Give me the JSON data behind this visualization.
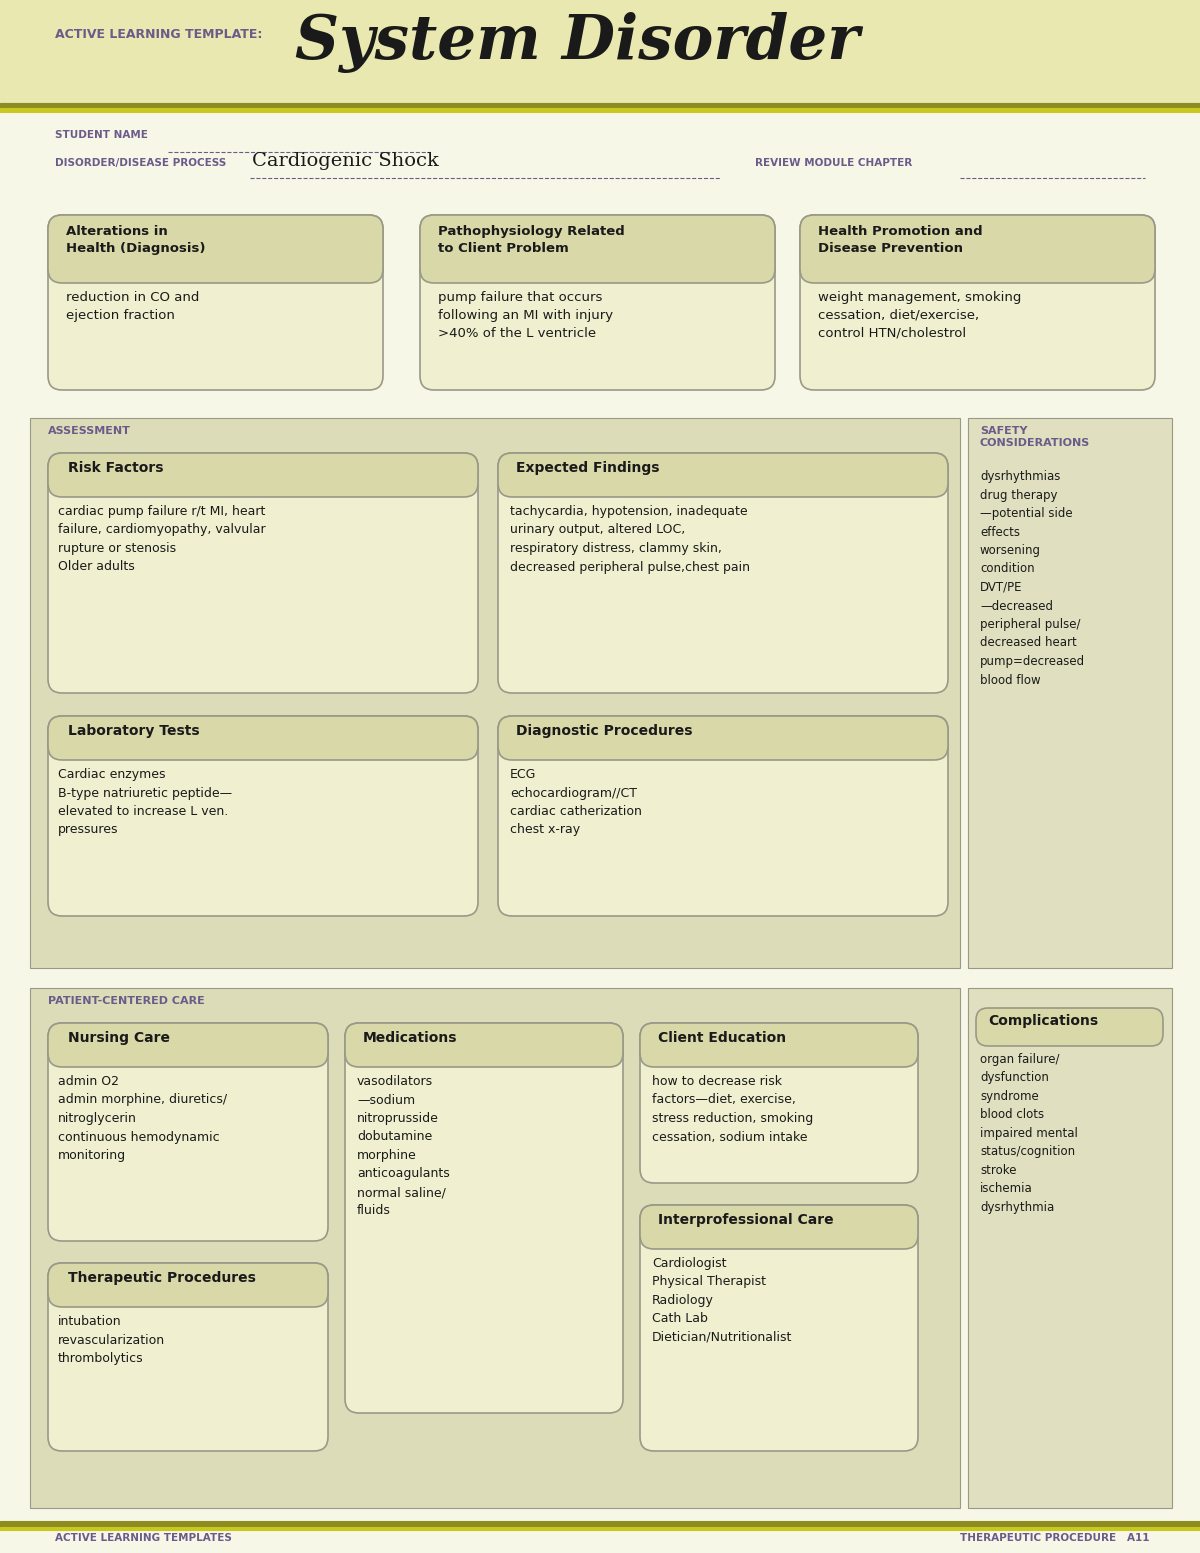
{
  "page_bg": "#f7f7e8",
  "header_bg": "#e8e8b0",
  "olive_dark": "#7a7a00",
  "olive_light": "#b8b800",
  "box_bg": "#f0f0d0",
  "box_title_bg": "#d8d8a8",
  "section_bg": "#dcdcb8",
  "safety_bg": "#e0e0c0",
  "purple": "#6b5b8a",
  "dark": "#1a1a1a",
  "border_color": "#999988",
  "title_label": "ACTIVE LEARNING TEMPLATE:",
  "title_main": "System Disorder",
  "student_name_label": "STUDENT NAME",
  "disorder_label": "DISORDER/DISEASE PROCESS",
  "disorder_value": "Cardiogenic Shock",
  "review_label": "REVIEW MODULE CHAPTER",
  "box1_title": "Alterations in\nHealth (Diagnosis)",
  "box1_content": "reduction in CO and\nejection fraction",
  "box2_title": "Pathophysiology Related\nto Client Problem",
  "box2_content": "pump failure that occurs\nfollowing an MI with injury\n>40% of the L ventricle",
  "box3_title": "Health Promotion and\nDisease Prevention",
  "box3_content": "weight management, smoking\ncessation, diet/exercise,\ncontrol HTN/cholestrol",
  "assess_label": "ASSESSMENT",
  "safety_label": "SAFETY\nCONSIDERATIONS",
  "safety_content": "dysrhythmias\ndrug therapy\n—potential side\neffects\nworsening\ncondition\nDVT/PE\n—decreased\nperipheral pulse/\ndecreased heart\npump=decreased\nblood flow",
  "risk_title": "Risk Factors",
  "risk_content": "cardiac pump failure r/t MI, heart\nfailure, cardiomyopathy, valvular\nrupture or stenosis\nOlder adults",
  "findings_title": "Expected Findings",
  "findings_content": "tachycardia, hypotension, inadequate\nurinary output, altered LOC,\nrespiratory distress, clammy skin,\ndecreased peripheral pulse,chest pain",
  "lab_title": "Laboratory Tests",
  "lab_content": "Cardiac enzymes\nB-type natriuretic peptide—\nelevated to increase L ven.\npressures",
  "diag_title": "Diagnostic Procedures",
  "diag_content": "ECG\nechocardiogram//CT\ncardiac catherization\nchest x-ray",
  "patcare_label": "PATIENT-CENTERED CARE",
  "complications_title": "Complications",
  "complications_content": "organ failure/\ndysfunction\nsyndrome\nblood clots\nimpaired mental\nstatus/cognition\nstroke\nischemia\ndysrhythmia",
  "nursing_title": "Nursing Care",
  "nursing_content": "admin O2\nadmin morphine, diuretics/\nnitroglycerin\ncontinuous hemodynamic\nmonitoring",
  "meds_title": "Medications",
  "meds_content": "vasodilators\n—sodium\nnitroprusside\ndobutamine\nmorphine\nanticoagulants\nnormal saline/\nfluids",
  "edu_title": "Client Education",
  "edu_content": "how to decrease risk\nfactors—diet, exercise,\nstress reduction, smoking\ncessation, sodium intake",
  "thera_title": "Therapeutic Procedures",
  "thera_content": "intubation\nrevascularization\nthrombolytics",
  "interprof_title": "Interprofessional Care",
  "interprof_content": "Cardiologist\nPhysical Therapist\nRadiology\nCath Lab\nDietician/Nutritionalist",
  "footer_left": "ACTIVE LEARNING TEMPLATES",
  "footer_right": "THERAPEUTIC PROCEDURE   A11"
}
